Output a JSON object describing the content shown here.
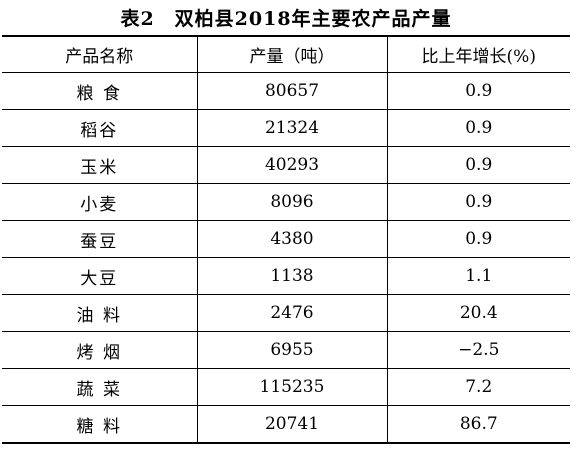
{
  "title": "表2　双柏县2018年主要农产品产量",
  "table": {
    "header": [
      "产品名称",
      "产量（吨）",
      "比上年增长(%)"
    ],
    "rows": [
      [
        "粮 食",
        "80657",
        "0.9"
      ],
      [
        "稻谷",
        "21324",
        "0.9"
      ],
      [
        "玉米",
        "40293",
        "0.9"
      ],
      [
        "小麦",
        "8096",
        "0.9"
      ],
      [
        "蚕豆",
        "4380",
        "0.9"
      ],
      [
        "大豆",
        "1138",
        "1.1"
      ],
      [
        "油 料",
        "2476",
        "20.4"
      ],
      [
        "烤 烟",
        "6955",
        "−2.5"
      ],
      [
        "蔬 菜",
        "115235",
        "7.2"
      ],
      [
        "糖 料",
        "20741",
        "86.7"
      ]
    ]
  }
}
